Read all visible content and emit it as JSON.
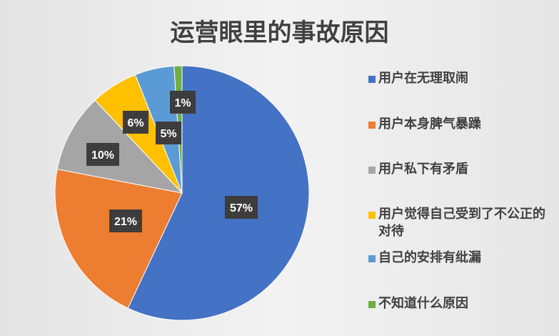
{
  "chart_data": {
    "type": "pie",
    "title": "运营眼里的事故原因",
    "categories": [
      "用户在无理取闹",
      "用户本身脾气暴躁",
      "用户私下有矛盾",
      "用户觉得自己受到了不公正的对待",
      "自己的安排有纰漏",
      "不知道什么原因"
    ],
    "values": [
      57,
      21,
      10,
      6,
      5,
      1
    ],
    "data_labels": [
      "57%",
      "21%",
      "10%",
      "6%",
      "5%",
      "1%"
    ],
    "colors": [
      "#4472c4",
      "#ed7d31",
      "#a5a5a5",
      "#ffc000",
      "#5b9bd5",
      "#70ad47"
    ],
    "legend_placement": "right",
    "start_angle": "top, clockwise"
  }
}
